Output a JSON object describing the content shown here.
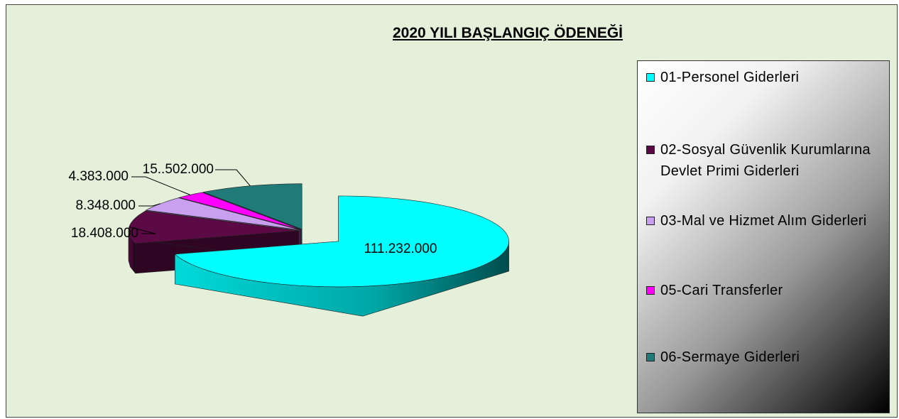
{
  "chart_data": {
    "type": "pie",
    "title": "2020 YILI  BAŞLANGIÇ  ÖDENEĞİ",
    "series": [
      {
        "name": "2020 YILI  BAŞLANGIÇ  ÖDENEĞİ",
        "categories": [
          "01-Personel Giderleri",
          "02-Sosyal Güvenlik Kurumlarına Devlet Primi Giderleri",
          "03-Mal ve Hizmet Alım Giderleri",
          "05-Cari Transferler",
          "06-Sermaye Giderleri"
        ],
        "values": [
          111232000,
          18408000,
          8348000,
          4383000,
          15502000
        ],
        "value_labels": [
          "111.232.000",
          "18.408.000",
          "8.348.000",
          "4.383.000",
          "15..502.000"
        ],
        "colors": [
          "#00ffff",
          "#5c0a45",
          "#c9a0f0",
          "#ff00ff",
          "#1f7a78"
        ]
      }
    ],
    "legend": "right"
  }
}
